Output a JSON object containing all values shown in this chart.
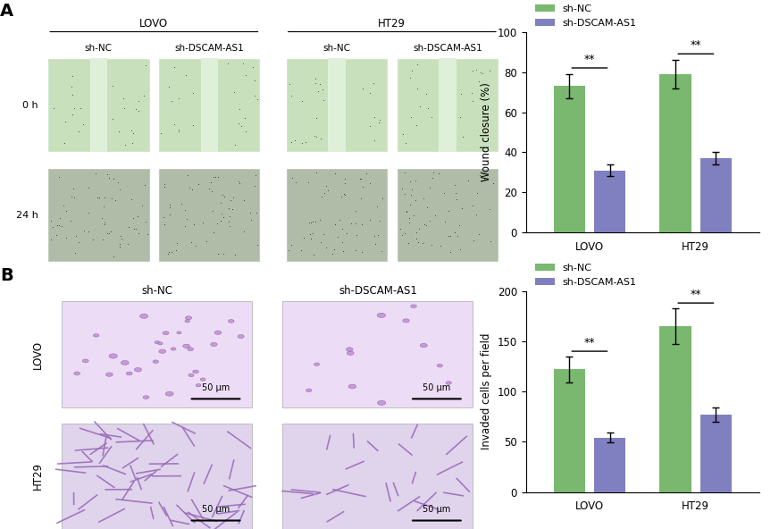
{
  "chart_A": {
    "categories": [
      "LOVO",
      "HT29"
    ],
    "sh_nc_values": [
      73,
      79
    ],
    "sh_nc_errors": [
      6,
      7
    ],
    "sh_dscam_values": [
      31,
      37
    ],
    "sh_dscam_errors": [
      3,
      3
    ],
    "ylabel": "Wound closure (%)",
    "ylim": [
      0,
      100
    ],
    "yticks": [
      0,
      20,
      40,
      60,
      80,
      100
    ],
    "color_nc": "#7ab870",
    "color_dscam": "#8080c0"
  },
  "chart_B": {
    "categories": [
      "LOVO",
      "HT29"
    ],
    "sh_nc_values": [
      122,
      165
    ],
    "sh_nc_errors": [
      13,
      18
    ],
    "sh_dscam_values": [
      54,
      77
    ],
    "sh_dscam_errors": [
      5,
      7
    ],
    "ylabel": "Invaded cells per field",
    "ylim": [
      0,
      200
    ],
    "yticks": [
      0,
      50,
      100,
      150,
      200
    ],
    "color_nc": "#7ab870",
    "color_dscam": "#8080c0"
  },
  "legend_nc": "sh-NC",
  "legend_dscam": "sh-DSCAM-AS1",
  "sig_text": "**",
  "bar_width": 0.3,
  "background_color": "#ffffff",
  "panel_A_label": "A",
  "panel_B_label": "B",
  "scale_bar_text": "50 μm",
  "col_labels_A": [
    "sh-NC",
    "sh-DSCAM-AS1",
    "sh-NC",
    "sh-DSCAM-AS1"
  ],
  "row_labels_A": [
    "0 h",
    "24 h"
  ],
  "group_labels_A": [
    "LOVO",
    "HT29"
  ],
  "col_labels_B": [
    "sh-NC",
    "sh-DSCAM-AS1"
  ],
  "row_labels_B": [
    "LOVO",
    "HT29"
  ],
  "img_A_0h_color": "#c8e0bc",
  "img_A_24h_color": "#b0bca8",
  "img_A_wound_color": "#dff0d8",
  "img_B_lovo_color": "#eddcf5",
  "img_B_ht29_color": "#e0d4ec"
}
